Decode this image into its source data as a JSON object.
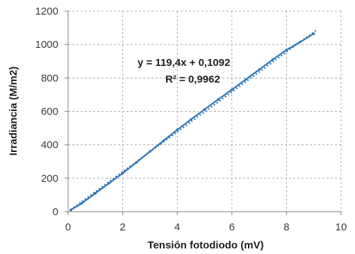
{
  "chart_data": {
    "type": "scatter",
    "xlabel": "Tensión fotodiodo (mV)",
    "ylabel": "Irradiancia (M/m2)",
    "xlim": [
      0,
      10
    ],
    "ylim": [
      0,
      1200
    ],
    "x_ticks": [
      0,
      2,
      4,
      6,
      8,
      10
    ],
    "y_ticks": [
      0,
      200,
      400,
      600,
      800,
      1000,
      1200
    ],
    "x_tick_labels": [
      "0",
      "2",
      "4",
      "6",
      "8",
      "10"
    ],
    "y_tick_labels": [
      "0",
      "200",
      "400",
      "600",
      "800",
      "1000",
      "1200"
    ],
    "grid": true,
    "series": [
      {
        "style": "measured",
        "color": "#2e75b6",
        "x": [
          0.1,
          0.5,
          1.0,
          1.5,
          2.0,
          2.5,
          3.0,
          3.5,
          4.0,
          4.5,
          5.0,
          5.5,
          6.0,
          6.5,
          7.0,
          7.5,
          8.0,
          8.5,
          9.0
        ],
        "y": [
          10,
          50,
          110,
          170,
          230,
          295,
          360,
          425,
          490,
          552,
          612,
          672,
          730,
          790,
          850,
          910,
          968,
          1015,
          1065
        ]
      },
      {
        "style": "trendline",
        "color": "#2e75b6",
        "dashed": true,
        "slope": 119.4,
        "intercept": 0.1092,
        "x_range": [
          0.1,
          9.1
        ]
      }
    ],
    "annotations": {
      "equation": "y = 119,4x + 0,1092",
      "r2": "R² = 0,9962"
    }
  }
}
